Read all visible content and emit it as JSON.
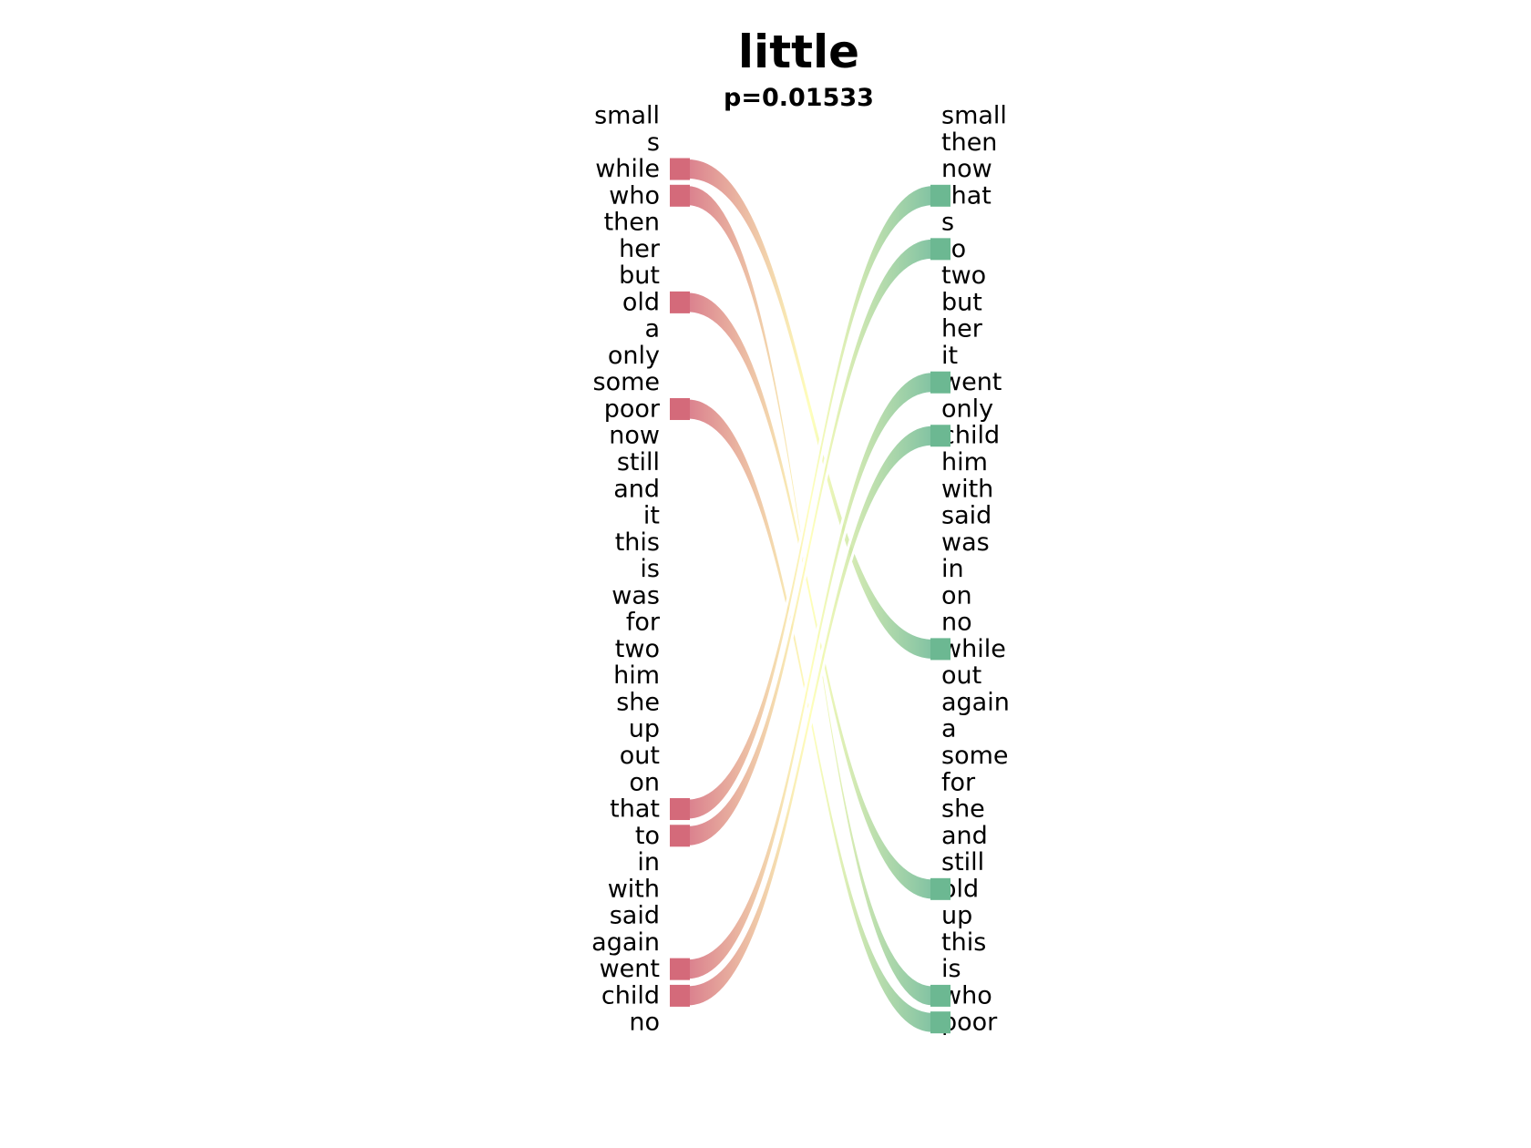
{
  "title": "little",
  "subtitle": "p=0.01533",
  "diagram": {
    "left_words": [
      "small",
      "s",
      "while",
      "who",
      "then",
      "her",
      "but",
      "old",
      "a",
      "only",
      "some",
      "poor",
      "now",
      "still",
      "and",
      "it",
      "this",
      "is",
      "was",
      "for",
      "two",
      "him",
      "she",
      "up",
      "out",
      "on",
      "that",
      "to",
      "in",
      "with",
      "said",
      "again",
      "went",
      "child",
      "no"
    ],
    "right_words": [
      "small",
      "then",
      "now",
      "that",
      "s",
      "to",
      "two",
      "but",
      "her",
      "it",
      "went",
      "only",
      "child",
      "him",
      "with",
      "said",
      "was",
      "in",
      "on",
      "no",
      "while",
      "out",
      "again",
      "a",
      "some",
      "for",
      "she",
      "and",
      "still",
      "old",
      "up",
      "this",
      "is",
      "who",
      "poor"
    ],
    "links": [
      {
        "from": "while",
        "to": "while"
      },
      {
        "from": "who",
        "to": "who"
      },
      {
        "from": "old",
        "to": "old"
      },
      {
        "from": "poor",
        "to": "poor"
      },
      {
        "from": "that",
        "to": "that"
      },
      {
        "from": "to",
        "to": "to"
      },
      {
        "from": "went",
        "to": "went"
      },
      {
        "from": "child",
        "to": "child"
      }
    ],
    "colors": {
      "left": "#d46a7a",
      "middle": "#ffffb0",
      "right": "#6cb892"
    }
  }
}
